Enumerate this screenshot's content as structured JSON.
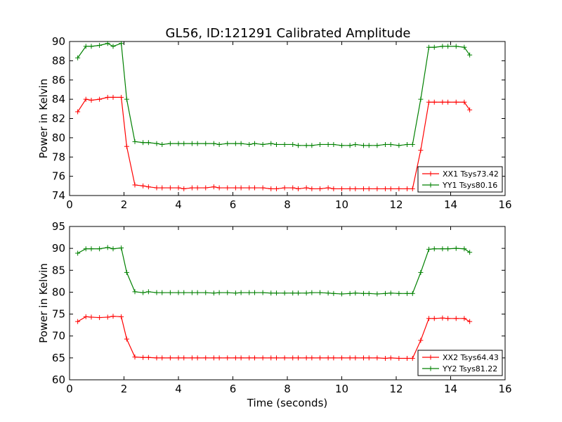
{
  "figure": {
    "title": "GL56, ID:121291 Calibrated Amplitude"
  },
  "chart_data": [
    {
      "type": "line",
      "title": "GL56, ID:121291 Calibrated Amplitude",
      "xlabel": "",
      "ylabel": "Power in Kelvin",
      "xlim": [
        0,
        16
      ],
      "ylim": [
        74,
        90
      ],
      "xticks": [
        "0",
        "2",
        "4",
        "6",
        "8",
        "10",
        "12",
        "14",
        "16"
      ],
      "yticks": [
        "74",
        "76",
        "78",
        "80",
        "82",
        "84",
        "86",
        "88",
        "90"
      ],
      "grid": false,
      "legend_position": "lower-right",
      "x": [
        0.3,
        0.6,
        0.8,
        1.1,
        1.4,
        1.6,
        1.9,
        2.1,
        2.4,
        2.7,
        2.9,
        3.2,
        3.4,
        3.7,
        4.0,
        4.2,
        4.5,
        4.7,
        5.0,
        5.3,
        5.5,
        5.8,
        6.1,
        6.3,
        6.6,
        6.8,
        7.1,
        7.4,
        7.6,
        7.9,
        8.2,
        8.4,
        8.7,
        8.9,
        9.2,
        9.5,
        9.7,
        10.0,
        10.3,
        10.5,
        10.8,
        11.0,
        11.3,
        11.6,
        11.8,
        12.1,
        12.4,
        12.6,
        12.9,
        13.2,
        13.4,
        13.7,
        13.9,
        14.2,
        14.5,
        14.7
      ],
      "series": [
        {
          "name": "XX1 Tsys73.42",
          "color": "#ff0000",
          "values": [
            82.7,
            84.0,
            83.9,
            84.0,
            84.2,
            84.2,
            84.2,
            79.1,
            75.1,
            75.0,
            74.9,
            74.8,
            74.8,
            74.8,
            74.8,
            74.7,
            74.8,
            74.8,
            74.8,
            74.9,
            74.8,
            74.8,
            74.8,
            74.8,
            74.8,
            74.8,
            74.8,
            74.7,
            74.7,
            74.8,
            74.8,
            74.7,
            74.8,
            74.7,
            74.7,
            74.8,
            74.7,
            74.7,
            74.7,
            74.7,
            74.7,
            74.7,
            74.7,
            74.7,
            74.7,
            74.7,
            74.7,
            74.7,
            78.7,
            83.7,
            83.7,
            83.7,
            83.7,
            83.7,
            83.7,
            82.9
          ]
        },
        {
          "name": "YY1 Tsys80.16",
          "color": "#008000",
          "values": [
            88.3,
            89.5,
            89.5,
            89.6,
            89.8,
            89.5,
            89.8,
            84.0,
            79.6,
            79.5,
            79.5,
            79.4,
            79.3,
            79.4,
            79.4,
            79.4,
            79.4,
            79.4,
            79.4,
            79.4,
            79.3,
            79.4,
            79.4,
            79.4,
            79.3,
            79.4,
            79.3,
            79.4,
            79.3,
            79.3,
            79.3,
            79.2,
            79.2,
            79.2,
            79.3,
            79.3,
            79.3,
            79.2,
            79.2,
            79.3,
            79.2,
            79.2,
            79.2,
            79.3,
            79.3,
            79.2,
            79.3,
            79.3,
            84.0,
            89.4,
            89.4,
            89.5,
            89.5,
            89.5,
            89.4,
            88.6
          ]
        }
      ]
    },
    {
      "type": "line",
      "xlabel": "Time (seconds)",
      "ylabel": "Power in Kelvin",
      "xlim": [
        0,
        16
      ],
      "ylim": [
        60,
        95
      ],
      "xticks": [
        "0",
        "2",
        "4",
        "6",
        "8",
        "10",
        "12",
        "14",
        "16"
      ],
      "yticks": [
        "60",
        "65",
        "70",
        "75",
        "80",
        "85",
        "90",
        "95"
      ],
      "grid": false,
      "legend_position": "lower-right",
      "x": [
        0.3,
        0.6,
        0.8,
        1.1,
        1.4,
        1.6,
        1.9,
        2.1,
        2.4,
        2.7,
        2.9,
        3.2,
        3.4,
        3.7,
        4.0,
        4.2,
        4.5,
        4.7,
        5.0,
        5.3,
        5.5,
        5.8,
        6.1,
        6.3,
        6.6,
        6.8,
        7.1,
        7.4,
        7.6,
        7.9,
        8.2,
        8.4,
        8.7,
        8.9,
        9.2,
        9.5,
        9.7,
        10.0,
        10.3,
        10.5,
        10.8,
        11.0,
        11.3,
        11.6,
        11.8,
        12.1,
        12.4,
        12.6,
        12.9,
        13.2,
        13.4,
        13.7,
        13.9,
        14.2,
        14.5,
        14.7
      ],
      "series": [
        {
          "name": "XX2 Tsys64.43",
          "color": "#ff0000",
          "values": [
            73.3,
            74.4,
            74.3,
            74.2,
            74.3,
            74.5,
            74.4,
            69.3,
            65.2,
            65.1,
            65.1,
            65.0,
            65.0,
            65.0,
            65.0,
            65.0,
            65.0,
            65.0,
            65.0,
            65.0,
            65.0,
            65.0,
            65.0,
            65.0,
            65.0,
            65.0,
            65.0,
            65.0,
            65.0,
            65.0,
            65.0,
            65.0,
            65.0,
            65.0,
            65.0,
            65.0,
            65.0,
            65.0,
            65.0,
            65.0,
            65.0,
            65.0,
            65.0,
            64.9,
            65.0,
            64.9,
            64.9,
            64.9,
            69.0,
            74.0,
            74.0,
            74.1,
            74.0,
            74.0,
            74.0,
            73.3
          ]
        },
        {
          "name": "YY2 Tsys81.22",
          "color": "#008000",
          "values": [
            88.9,
            89.9,
            89.9,
            89.9,
            90.2,
            89.9,
            90.1,
            84.5,
            80.1,
            79.9,
            80.1,
            79.9,
            79.9,
            79.9,
            79.9,
            79.9,
            79.9,
            79.9,
            79.9,
            79.8,
            79.9,
            79.9,
            79.8,
            79.9,
            79.9,
            79.9,
            79.9,
            79.8,
            79.8,
            79.8,
            79.8,
            79.8,
            79.8,
            79.9,
            79.9,
            79.8,
            79.7,
            79.6,
            79.7,
            79.8,
            79.7,
            79.7,
            79.6,
            79.7,
            79.8,
            79.7,
            79.7,
            79.7,
            84.5,
            89.8,
            89.9,
            89.9,
            89.9,
            90.0,
            89.9,
            89.1
          ]
        }
      ]
    }
  ]
}
